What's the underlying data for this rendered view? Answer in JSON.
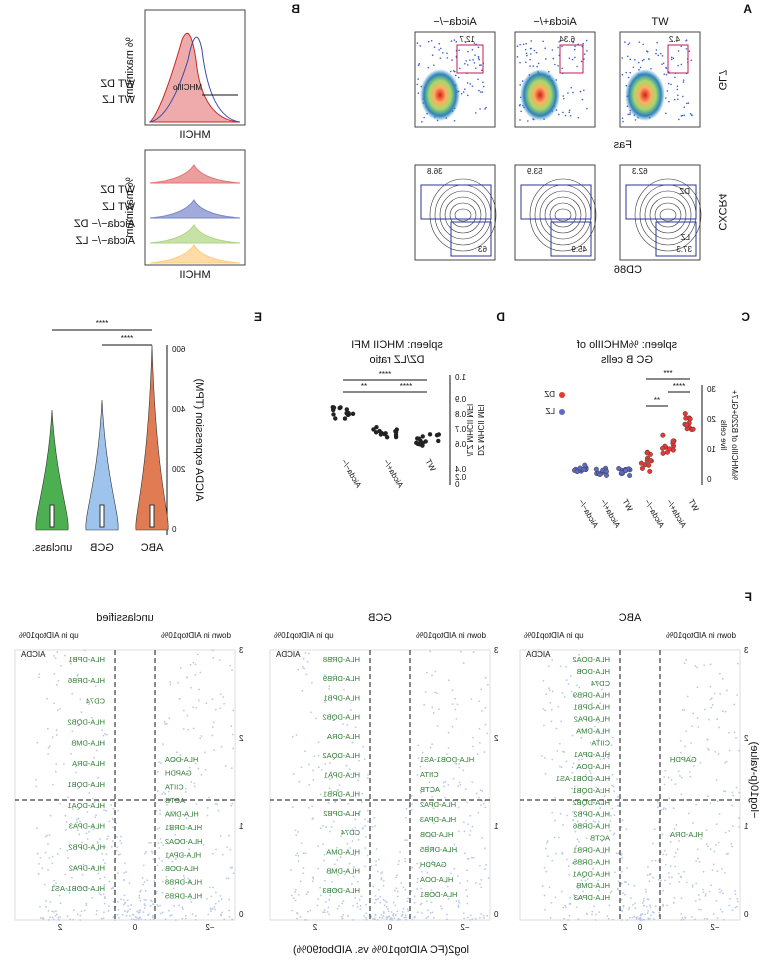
{
  "panels": {
    "A": {
      "label": "A",
      "genotypes": [
        "WT",
        "Aicda+/−",
        "Aicda−/−"
      ],
      "top_y": "GL7",
      "top_x": "Fas",
      "top_gates": [
        "4.2",
        "6.34",
        "12.7"
      ],
      "bottom_y": "CXCR4",
      "bottom_x": "CD86",
      "dz": [
        "62.3",
        "53.9",
        "36.8"
      ],
      "lz": [
        "37.3",
        "45.9",
        "63"
      ],
      "dz_tag": "DZ",
      "lz_tag": "LZ"
    },
    "B": {
      "label": "B",
      "x_label": "MHCII",
      "y_label": "% maximum",
      "gate": "MHCIIlo",
      "legend_top": [
        "WT DZ",
        "WT LZ"
      ],
      "legend_bottom": [
        "WT DZ",
        "WT LZ",
        "Aicda−/− DZ",
        "Aicda−/− LZ"
      ]
    },
    "C": {
      "label": "C",
      "title": [
        "spleen: %MHCIIlo of",
        "GC B cells"
      ],
      "y_label": [
        "%MHCIIlo of B220+GL7+",
        "live cells"
      ],
      "yticks": [
        "0",
        "10",
        "20",
        "30"
      ],
      "categories": [
        "WT",
        "Aicda+/−",
        "Aicda−/−",
        "WT",
        "Aicda+/−",
        "Aicda−/−"
      ],
      "legend": [
        "DZ",
        "LZ"
      ],
      "sig": [
        "****",
        "**",
        "***"
      ]
    },
    "D": {
      "label": "D",
      "title": [
        "spleen: MHCII MFI",
        "DZ/LZ ratio"
      ],
      "y_label": [
        "DZ MHCII MFI",
        "/LZ MHCII MFI"
      ],
      "yticks": [
        "0",
        "0.2",
        "0.4",
        "0.6",
        "0.7",
        "0.8",
        "0.9",
        "1.0"
      ],
      "categories": [
        "WT",
        "Aicda+/−",
        "Aicda−/−"
      ],
      "sig": [
        "****",
        "****",
        "**"
      ]
    },
    "E": {
      "label": "E",
      "y_label": "AICDA expression (TPM)",
      "yticks": [
        "0",
        "200",
        "400",
        "600"
      ],
      "categories": [
        "ABC",
        "GCB",
        "unclass."
      ],
      "sig": [
        "****",
        "****"
      ]
    },
    "F": {
      "label": "F",
      "y_label": "−log10(p-value)",
      "x_label": "log2(FC AIDtop10% vs. AIDbot90%)",
      "down": "down in AIDtop10%",
      "up": "up in AIDtop10%",
      "yticks": [
        "0",
        "1",
        "2",
        "3"
      ],
      "xticks": [
        "−2",
        "0",
        "2"
      ],
      "aid": "AICDA",
      "subpanels": [
        {
          "title": "ABC",
          "genes": [
            "HLA-DOA2",
            "HLA-DOB",
            "CD74",
            "HLA-DRB9",
            "HLA-DPB1",
            "HLA-DPA2",
            "HLA-DMA",
            "CIITA",
            "HLA-DPA1",
            "HLA-DOA",
            "HLA-DOB1-AS1",
            "HLA-DQB1",
            "HLA-DQB2",
            "HLA-DPB2",
            "HLA-DRB6",
            "ACTB",
            "HLA-DRB1",
            "HLA-DRB5",
            "HLA-DQA1",
            "HLA-DMB",
            "HLA-DPA3"
          ],
          "special": [
            "GAPDH",
            "HLA-DRA"
          ]
        },
        {
          "title": "GCB",
          "genes": [
            "HLA-DRB8",
            "HLA-DRB9",
            "HLA-DPB1",
            "HLA-DQB2",
            "HLA-DRA",
            "HLA-DQA2",
            "HLA-DPA1",
            "HLA-DRB1",
            "HLA-DPB2",
            "CD74",
            "HLA-DMA",
            "HLA-DMB",
            "HLA-DOB3"
          ],
          "special": [
            "HLA-DOB1-AS1",
            "CIITA",
            "ACTB",
            "HLA-DPA2",
            "HLA-DPA3",
            "HLA-DOB",
            "HLA-DRB5",
            "GAPDH",
            "HLA-DOA",
            "HLA-DOB1"
          ]
        },
        {
          "title": "unclassified",
          "genes": [
            "HLA-DPB1",
            "HLA-DRB6",
            "CD74",
            "HLA-DQB2",
            "HLA-DMB",
            "HLA-DRA",
            "HLA-DQB1",
            "HLA-DQA1",
            "HLA-DPA3",
            "HLA-DPB2",
            "HLA-DPA2",
            "HLA-DOB1-AS1"
          ],
          "special": [
            "HLA-DOA",
            "GAPDH",
            "CIITA",
            "ACTB",
            "HLA-DMA",
            "HLA-DRB1",
            "HLA-DOA2",
            "HLA-DPA1",
            "HLA-DOB",
            "HLA-DRB8",
            "HLA-DRB5"
          ]
        }
      ]
    }
  }
}
